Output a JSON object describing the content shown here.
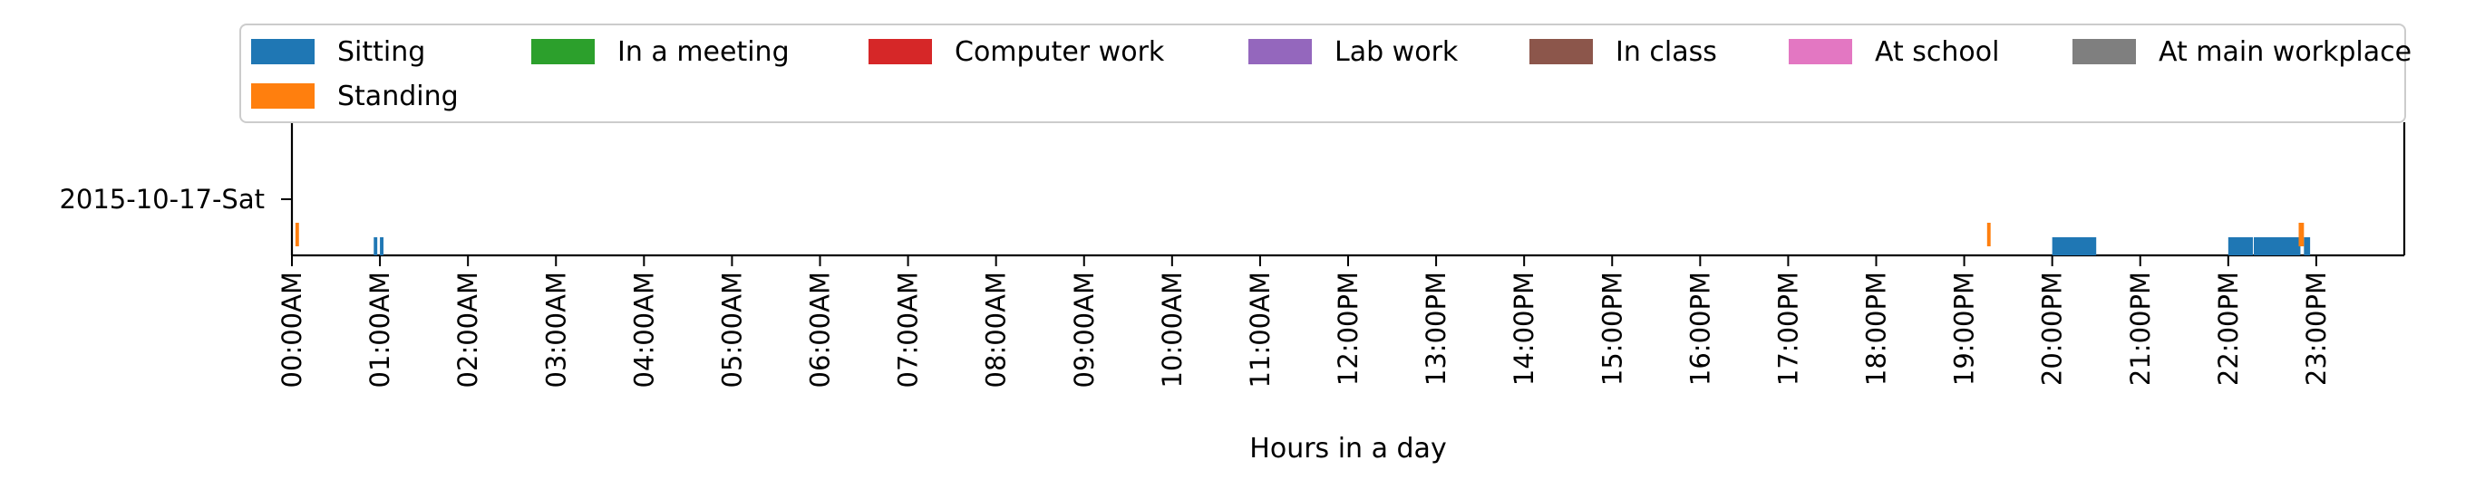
{
  "chart_data": {
    "type": "timeline",
    "xlabel": "Hours in a day",
    "ylabel": "",
    "xlim": [
      0,
      24
    ],
    "x_tick_values": [
      0,
      1,
      2,
      3,
      4,
      5,
      6,
      7,
      8,
      9,
      10,
      11,
      12,
      13,
      14,
      15,
      16,
      17,
      18,
      19,
      20,
      21,
      22,
      23
    ],
    "x_tick_labels": [
      "00:00AM",
      "01:00AM",
      "02:00AM",
      "03:00AM",
      "04:00AM",
      "05:00AM",
      "06:00AM",
      "07:00AM",
      "08:00AM",
      "09:00AM",
      "10:00AM",
      "11:00AM",
      "12:00PM",
      "13:00PM",
      "14:00PM",
      "15:00PM",
      "16:00PM",
      "17:00PM",
      "18:00PM",
      "19:00PM",
      "20:00PM",
      "21:00PM",
      "22:00PM",
      "23:00PM"
    ],
    "rows": [
      {
        "label": "2015-10-17-Sat"
      }
    ],
    "legend": {
      "location": "upper center",
      "columns": 7,
      "entries": [
        {
          "name": "Sitting",
          "color": "#1f77b4"
        },
        {
          "name": "In a meeting",
          "color": "#2ca02c"
        },
        {
          "name": "Computer work",
          "color": "#d62728"
        },
        {
          "name": "Lab work",
          "color": "#9467bd"
        },
        {
          "name": "In class",
          "color": "#8c564b"
        },
        {
          "name": "At school",
          "color": "#e377c2"
        },
        {
          "name": "At main workplace",
          "color": "#7f7f7f"
        },
        {
          "name": "Standing",
          "color": "#ff7f0e"
        }
      ]
    },
    "series": [
      {
        "name": "Sitting",
        "color": "#1f77b4",
        "intervals": [
          [
            0.93,
            0.97
          ],
          [
            1.0,
            1.04
          ],
          [
            20.0,
            20.5
          ],
          [
            22.0,
            22.28
          ],
          [
            22.29,
            22.82
          ],
          [
            22.86,
            22.93
          ]
        ]
      },
      {
        "name": "Standing",
        "color": "#ff7f0e",
        "intervals": [
          [
            0.04,
            0.08
          ],
          [
            19.26,
            19.3
          ],
          [
            22.8,
            22.86
          ]
        ]
      }
    ],
    "grid": false
  }
}
